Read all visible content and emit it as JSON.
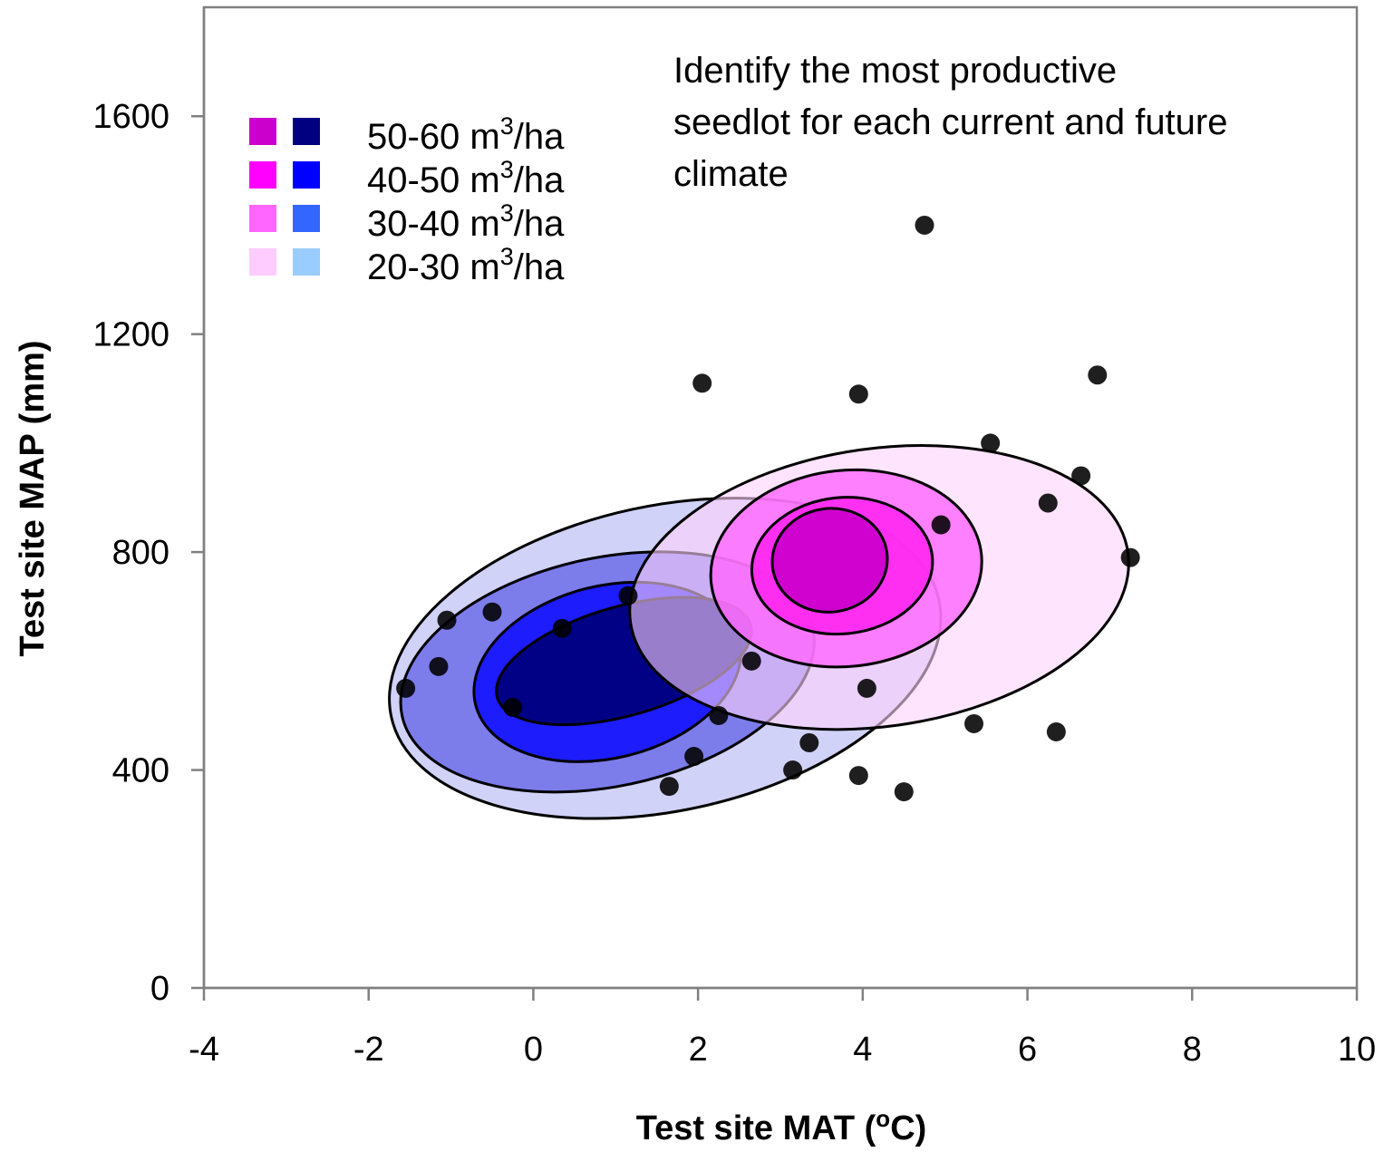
{
  "chart_data": {
    "type": "scatter",
    "title": "",
    "xlabel": "Test site MAT (",
    "xlabel_sup": "o",
    "xlabel_end": "C)",
    "ylabel": "Test site MAP (mm)",
    "xlim": [
      -4,
      10
    ],
    "ylim": [
      0,
      1800
    ],
    "x_ticks": [
      -4,
      -2,
      0,
      2,
      4,
      6,
      8,
      10
    ],
    "x_tick_labels": [
      "-4",
      "-2",
      "0",
      "2",
      "4",
      "6",
      "8",
      "10"
    ],
    "y_ticks": [
      0,
      400,
      800,
      1200,
      1600
    ],
    "y_tick_labels": [
      "0",
      "400",
      "800",
      "1200",
      "1600"
    ],
    "grid": false,
    "annotation": [
      "Identify the most productive",
      "seedlot for each current and future",
      "climate"
    ],
    "legend": {
      "placement": "top-left",
      "unit_prefix": " m",
      "unit_sup": "3",
      "unit_suffix": "/ha",
      "entries": [
        {
          "range": "50-60",
          "magenta": "#cc00cc",
          "blue": "#000080"
        },
        {
          "range": "40-50",
          "magenta": "#ff00ff",
          "blue": "#0000ff"
        },
        {
          "range": "30-40",
          "magenta": "#ff66ff",
          "blue": "#3366ff"
        },
        {
          "range": "20-30",
          "magenta": "#ffccff",
          "blue": "#99ccff"
        }
      ]
    },
    "points": [
      {
        "x": -1.55,
        "y": 550
      },
      {
        "x": -1.15,
        "y": 590
      },
      {
        "x": -1.05,
        "y": 675
      },
      {
        "x": -0.5,
        "y": 690
      },
      {
        "x": -0.25,
        "y": 515
      },
      {
        "x": 0.35,
        "y": 660
      },
      {
        "x": 1.15,
        "y": 720
      },
      {
        "x": 1.65,
        "y": 370
      },
      {
        "x": 1.95,
        "y": 425
      },
      {
        "x": 2.05,
        "y": 1110
      },
      {
        "x": 2.25,
        "y": 500
      },
      {
        "x": 2.65,
        "y": 600
      },
      {
        "x": 3.15,
        "y": 400
      },
      {
        "x": 3.35,
        "y": 450
      },
      {
        "x": 3.95,
        "y": 1090
      },
      {
        "x": 3.95,
        "y": 390
      },
      {
        "x": 4.05,
        "y": 550
      },
      {
        "x": 4.5,
        "y": 360
      },
      {
        "x": 4.75,
        "y": 1400
      },
      {
        "x": 4.95,
        "y": 850
      },
      {
        "x": 5.35,
        "y": 485
      },
      {
        "x": 5.55,
        "y": 1000
      },
      {
        "x": 6.25,
        "y": 890
      },
      {
        "x": 6.35,
        "y": 470
      },
      {
        "x": 6.65,
        "y": 940
      },
      {
        "x": 6.85,
        "y": 1125
      },
      {
        "x": 7.25,
        "y": 790
      }
    ],
    "ellipse_groups": [
      {
        "name": "",
        "rings": [
          {
            "cx": 1.6,
            "cy": 605,
            "rx": 3.4,
            "ry": 280,
            "angle": -12,
            "fill": "#c8caf6",
            "opacity": 0.85
          },
          {
            "cx": 0.9,
            "cy": 580,
            "rx": 2.55,
            "ry": 210,
            "angle": -12,
            "fill": "#6d6de9",
            "opacity": 0.85
          },
          {
            "cx": 0.9,
            "cy": 580,
            "rx": 1.65,
            "ry": 158,
            "angle": -14,
            "fill": "#1212ff",
            "opacity": 0.9
          },
          {
            "cx": 1.1,
            "cy": 600,
            "rx": 1.6,
            "ry": 100,
            "angle": -16,
            "fill": "#000080",
            "opacity": 0.95
          }
        ]
      },
      {
        "name": "",
        "rings": [
          {
            "cx": 4.2,
            "cy": 735,
            "rx": 3.05,
            "ry": 255,
            "angle": -8,
            "fill": "#ffd2fb",
            "opacity": 0.6
          },
          {
            "cx": 3.8,
            "cy": 770,
            "rx": 1.65,
            "ry": 180,
            "angle": -6,
            "fill": "#ff66ff",
            "opacity": 0.8
          },
          {
            "cx": 3.75,
            "cy": 775,
            "rx": 1.1,
            "ry": 125,
            "angle": -6,
            "fill": "#ff22ee",
            "opacity": 0.85
          },
          {
            "cx": 3.6,
            "cy": 785,
            "rx": 0.7,
            "ry": 95,
            "angle": -8,
            "fill": "#cc00cc",
            "opacity": 0.95
          }
        ]
      }
    ]
  }
}
